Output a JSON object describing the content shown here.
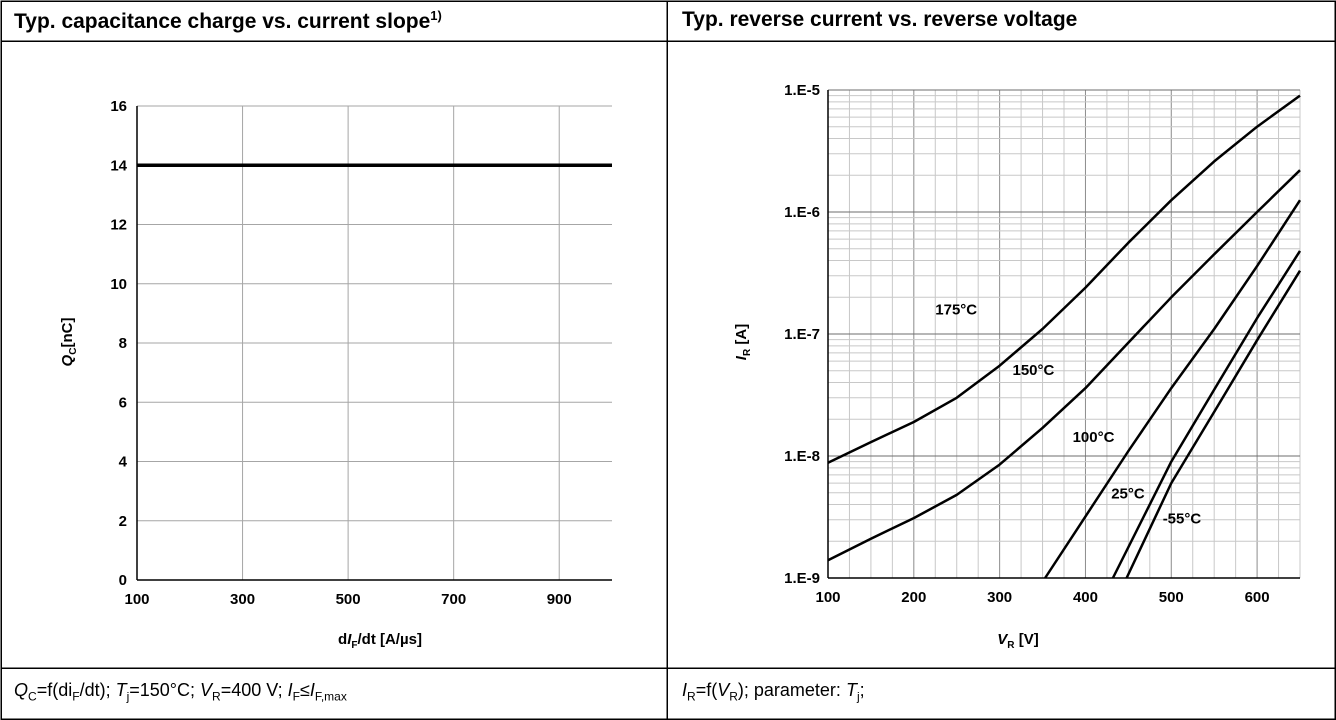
{
  "panels": {
    "left": {
      "title": "Typ. capacitance charge vs. current slope",
      "title_footnote": "1)",
      "caption": {
        "q": "Q",
        "q_sub": "C",
        "formula": "=f(di",
        "di_sub": "F",
        "formula_end": "/dt); ",
        "t": "T",
        "t_sub": "j",
        "t_val": "=150°C; ",
        "v": "V",
        "v_sub": "R",
        "v_val": "=400 V; ",
        "i1": "I",
        "i1_sub": "F",
        "le": "≤",
        "i2": "I",
        "i2_sub": "F,max"
      }
    },
    "right": {
      "title": "Typ. reverse current vs. reverse voltage",
      "caption": {
        "i": "I",
        "i_sub": "R",
        "mid": "=f(",
        "v": "V",
        "v_sub": "R",
        "mid2": "); parameter: ",
        "t": "T",
        "t_sub": "j",
        "end": ";"
      }
    }
  },
  "chart_data": [
    {
      "type": "line",
      "title": "Typ. capacitance charge vs. current slope",
      "xlabel_parts": [
        "d",
        "I",
        "F",
        "/dt [A/µs]"
      ],
      "ylabel_parts": [
        "Q",
        "C",
        "[nC]"
      ],
      "xlim": [
        100,
        1000
      ],
      "ylim": [
        0,
        16
      ],
      "xticks": [
        100,
        300,
        500,
        700,
        900
      ],
      "xtick_labels": [
        "100",
        "300",
        "500",
        "700",
        "900"
      ],
      "yticks": [
        0,
        2,
        4,
        6,
        8,
        10,
        12,
        14,
        16
      ],
      "ytick_labels": [
        "0",
        "2",
        "4",
        "6",
        "8",
        "10",
        "12",
        "14",
        "16"
      ],
      "grid": true,
      "series": [
        {
          "x": [
            100,
            1000
          ],
          "y": [
            14,
            14
          ]
        }
      ]
    },
    {
      "type": "line",
      "title": "Typ. reverse current vs. reverse voltage",
      "xlabel_parts": [
        "V",
        "R",
        " [V]"
      ],
      "ylabel_parts": [
        "I",
        "R",
        " [A]"
      ],
      "xlim": [
        100,
        650
      ],
      "ylim": [
        1e-09,
        1e-05
      ],
      "yscale": "log",
      "xticks": [
        100,
        200,
        300,
        400,
        500,
        600
      ],
      "xtick_labels": [
        "100",
        "200",
        "300",
        "400",
        "500",
        "600"
      ],
      "yticks": [
        1e-09,
        1e-08,
        1e-07,
        1e-06,
        1e-05
      ],
      "ytick_labels": [
        "1.E-9",
        "1.E-8",
        "1.E-7",
        "1.E-6",
        "1.E-5"
      ],
      "grid": true,
      "series": [
        {
          "name": "175°C",
          "label_at": [
            225,
            1.45e-07
          ],
          "x": [
            100,
            150,
            200,
            250,
            300,
            350,
            400,
            450,
            500,
            550,
            600,
            650
          ],
          "y": [
            8.8e-09,
            1.3e-08,
            1.9e-08,
            3e-08,
            5.5e-08,
            1.1e-07,
            2.4e-07,
            5.6e-07,
            1.25e-06,
            2.6e-06,
            5e-06,
            9e-06
          ]
        },
        {
          "name": "150°C",
          "label_at": [
            315,
            4.6e-08
          ],
          "x": [
            100,
            150,
            200,
            250,
            300,
            350,
            400,
            450,
            500,
            550,
            600,
            650
          ],
          "y": [
            1.4e-09,
            2.1e-09,
            3.1e-09,
            4.8e-09,
            8.5e-09,
            1.7e-08,
            3.6e-08,
            8.5e-08,
            2e-07,
            4.5e-07,
            1e-06,
            2.2e-06
          ]
        },
        {
          "name": "100°C",
          "label_at": [
            385,
            1.3e-08
          ],
          "x": [
            353,
            400,
            450,
            500,
            550,
            600,
            650
          ],
          "y": [
            1e-09,
            3.2e-09,
            1.1e-08,
            3.6e-08,
            1.1e-07,
            3.6e-07,
            1.25e-06
          ]
        },
        {
          "name": "25°C",
          "label_at": [
            430,
            4.5e-09
          ],
          "x": [
            432,
            500,
            550,
            600,
            650
          ],
          "y": [
            1e-09,
            9e-09,
            3.5e-08,
            1.35e-07,
            4.8e-07
          ]
        },
        {
          "name": "-55°C",
          "label_at": [
            490,
            2.8e-09
          ],
          "x": [
            448,
            500,
            550,
            600,
            650
          ],
          "y": [
            1e-09,
            6e-09,
            2.3e-08,
            8.9e-08,
            3.3e-07
          ]
        }
      ]
    }
  ]
}
